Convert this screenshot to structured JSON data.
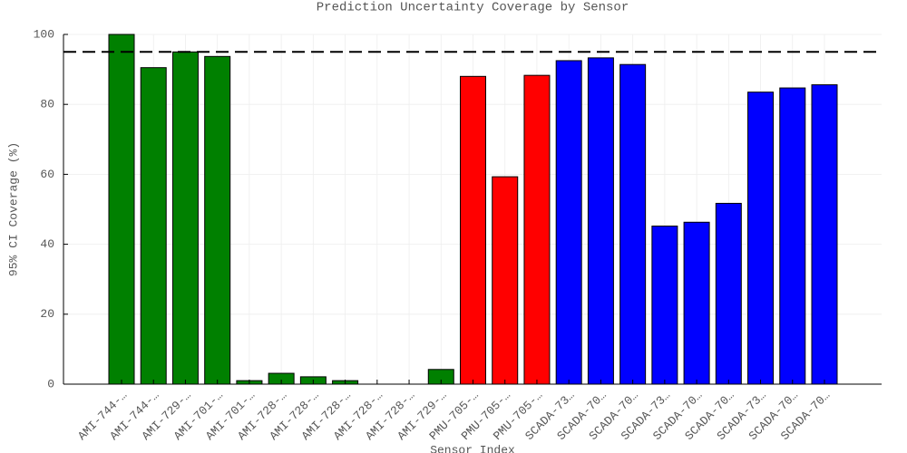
{
  "chart_data": {
    "type": "bar",
    "title": "Prediction Uncertainty Coverage by Sensor",
    "x_label": "Sensor Index",
    "y_label": "95% CI Coverage (%)",
    "categories": [
      "AMI-744-…",
      "AMI-744-…",
      "AMI-729-…",
      "AMI-701-…",
      "AMI-701-…",
      "AMI-728-…",
      "AMI-728-…",
      "AMI-728-…",
      "AMI-728-…",
      "AMI-728-…",
      "AMI-729-…",
      "PMU-705-…",
      "PMU-705-…",
      "PMU-705-…",
      "SCADA-73…",
      "SCADA-70…",
      "SCADA-70…",
      "SCADA-73…",
      "SCADA-70…",
      "SCADA-70…",
      "SCADA-73…",
      "SCADA-70…",
      "SCADA-70…"
    ],
    "values": [
      100,
      90.5,
      95,
      93.7,
      1,
      3.1,
      2.1,
      1,
      0,
      0,
      4.2,
      88,
      59.3,
      88.3,
      92.5,
      93.3,
      91.4,
      45.2,
      46.3,
      51.7,
      83.5,
      84.7,
      85.6
    ],
    "colors": [
      "#008000",
      "#008000",
      "#008000",
      "#008000",
      "#008000",
      "#008000",
      "#008000",
      "#008000",
      "#008000",
      "#008000",
      "#008000",
      "#ff0000",
      "#ff0000",
      "#ff0000",
      "#0000ff",
      "#0000ff",
      "#0000ff",
      "#0000ff",
      "#0000ff",
      "#0000ff",
      "#0000ff",
      "#0000ff",
      "#0000ff"
    ],
    "ylim": [
      0,
      100
    ],
    "yticks": [
      0,
      20,
      40,
      60,
      80,
      100
    ],
    "grid": true,
    "reference_line": {
      "value": 95,
      "style": "dashed",
      "color": "#000000"
    }
  }
}
